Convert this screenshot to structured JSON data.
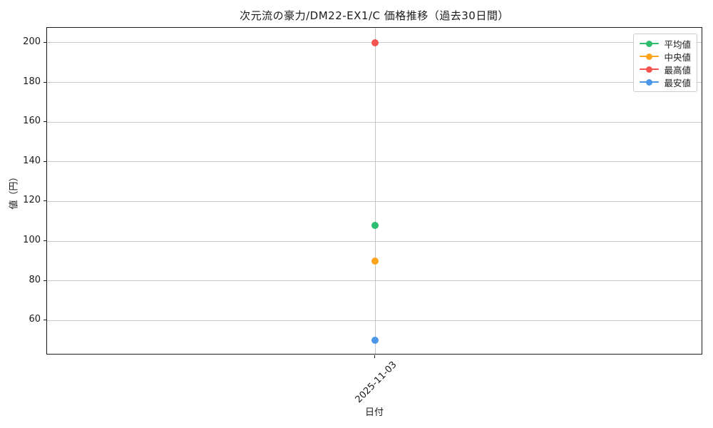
{
  "chart_data": {
    "type": "line",
    "title": "次元流の豪力/DM22-EX1/C 価格推移（過去30日間）",
    "xlabel": "日付",
    "ylabel": "値（円）",
    "x": [
      "2025-11-03"
    ],
    "xticks": [
      "2025-11-03"
    ],
    "series": [
      {
        "key": "avg",
        "name": "平均値",
        "color": "#2ebd6e",
        "values": [
          108
        ]
      },
      {
        "key": "median",
        "name": "中央値",
        "color": "#ffa51c",
        "values": [
          90
        ]
      },
      {
        "key": "high",
        "name": "最高値",
        "color": "#f5534f",
        "values": [
          200
        ]
      },
      {
        "key": "low",
        "name": "最安値",
        "color": "#4d97ea",
        "values": [
          50
        ]
      }
    ],
    "ylim": [
      42.5,
      207.5
    ],
    "yticks": [
      60,
      80,
      100,
      120,
      140,
      160,
      180,
      200
    ],
    "grid": true,
    "legend_position": "upper right",
    "colors": {
      "grid": "#c9c9c9",
      "spine": "#1a1a1a",
      "legend_border": "#cccccc",
      "background": "#ffffff"
    }
  }
}
